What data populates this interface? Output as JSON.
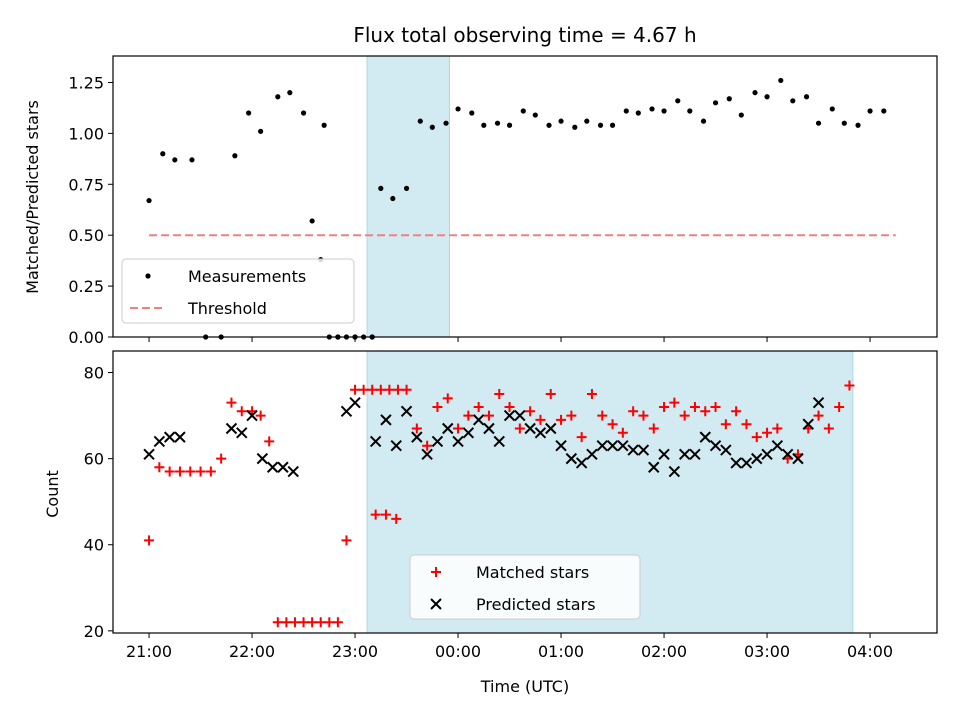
{
  "chart_data": [
    {
      "type": "scatter",
      "title": "Flux total observing time = 4.67 h",
      "xlabel": "",
      "ylabel": "Matched/Predicted stars",
      "x_range_hours": [
        20.65,
        28.65
      ],
      "ylim": [
        0,
        1.38
      ],
      "yticks": [
        0.0,
        0.25,
        0.5,
        0.75,
        1.0,
        1.25
      ],
      "ytick_labels": [
        "0.00",
        "0.25",
        "0.50",
        "0.75",
        "1.00",
        "1.25"
      ],
      "shaded_span": [
        "23:07",
        "23:55"
      ],
      "shade_color": "#add8e6",
      "legend": {
        "position": "lower-left",
        "entries": [
          "Measurements",
          "Threshold"
        ]
      },
      "threshold": {
        "name": "Threshold",
        "value": 0.5,
        "x_range": [
          "21:00",
          "04:15"
        ],
        "color": "#f08080"
      },
      "series": [
        {
          "name": "Measurements",
          "color": "#000000",
          "points": [
            [
              "21:00",
              0.67
            ],
            [
              "21:08",
              0.9
            ],
            [
              "21:15",
              0.87
            ],
            [
              "21:25",
              0.87
            ],
            [
              "21:33",
              0.0
            ],
            [
              "21:42",
              0.0
            ],
            [
              "21:50",
              0.89
            ],
            [
              "21:58",
              1.1
            ],
            [
              "22:05",
              1.01
            ],
            [
              "22:15",
              1.18
            ],
            [
              "22:22",
              1.2
            ],
            [
              "22:30",
              1.1
            ],
            [
              "22:40",
              0.38
            ],
            [
              "22:45",
              0.0
            ],
            [
              "22:50",
              0.0
            ],
            [
              "22:55",
              0.0
            ],
            [
              "23:00",
              0.0
            ],
            [
              "23:05",
              0.0
            ],
            [
              "23:10",
              0.0
            ],
            [
              "22:35",
              0.57
            ],
            [
              "22:42",
              1.04
            ],
            [
              "22:50",
              0.0
            ],
            [
              "23:00",
              0.0
            ],
            [
              "23:10",
              0.0
            ],
            [
              "23:15",
              0.73
            ],
            [
              "23:22",
              0.68
            ],
            [
              "23:30",
              0.73
            ],
            [
              "23:38",
              1.06
            ],
            [
              "23:45",
              1.03
            ],
            [
              "23:53",
              1.05
            ],
            [
              "00:00",
              1.12
            ],
            [
              "00:08",
              1.1
            ],
            [
              "00:15",
              1.04
            ],
            [
              "00:23",
              1.05
            ],
            [
              "00:30",
              1.04
            ],
            [
              "00:38",
              1.11
            ],
            [
              "00:45",
              1.09
            ],
            [
              "00:53",
              1.04
            ],
            [
              "01:00",
              1.06
            ],
            [
              "01:08",
              1.03
            ],
            [
              "01:15",
              1.06
            ],
            [
              "01:23",
              1.04
            ],
            [
              "01:30",
              1.04
            ],
            [
              "01:38",
              1.11
            ],
            [
              "01:45",
              1.1
            ],
            [
              "01:53",
              1.12
            ],
            [
              "02:00",
              1.11
            ],
            [
              "02:08",
              1.16
            ],
            [
              "02:15",
              1.11
            ],
            [
              "02:23",
              1.06
            ],
            [
              "02:30",
              1.15
            ],
            [
              "02:38",
              1.17
            ],
            [
              "02:45",
              1.09
            ],
            [
              "02:53",
              1.2
            ],
            [
              "03:00",
              1.18
            ],
            [
              "03:08",
              1.26
            ],
            [
              "03:15",
              1.16
            ],
            [
              "03:23",
              1.18
            ],
            [
              "03:30",
              1.05
            ],
            [
              "03:38",
              1.12
            ],
            [
              "03:45",
              1.05
            ],
            [
              "03:53",
              1.04
            ],
            [
              "04:00",
              1.11
            ],
            [
              "04:08",
              1.11
            ]
          ]
        }
      ]
    },
    {
      "type": "scatter",
      "title": "",
      "xlabel": "Time (UTC)",
      "ylabel": "Count",
      "x_range_hours": [
        20.65,
        28.65
      ],
      "ylim": [
        19.5,
        85
      ],
      "yticks": [
        20,
        40,
        60,
        80
      ],
      "ytick_labels": [
        "20",
        "40",
        "60",
        "80"
      ],
      "xticks": [
        "21:00",
        "22:00",
        "23:00",
        "00:00",
        "01:00",
        "02:00",
        "03:00",
        "04:00"
      ],
      "shaded_span": [
        "23:07",
        "03:50"
      ],
      "shade_color": "#add8e6",
      "legend": {
        "position": "lower-center",
        "entries": [
          "Matched stars",
          "Predicted stars"
        ]
      },
      "series": [
        {
          "name": "Matched stars",
          "marker": "plus",
          "color": "#ff0000",
          "points": [
            [
              "21:00",
              41
            ],
            [
              "21:06",
              58
            ],
            [
              "21:12",
              57
            ],
            [
              "21:18",
              57
            ],
            [
              "21:24",
              57
            ],
            [
              "21:30",
              57
            ],
            [
              "21:36",
              57
            ],
            [
              "21:42",
              60
            ],
            [
              "21:48",
              73
            ],
            [
              "21:54",
              71
            ],
            [
              "22:00",
              71
            ],
            [
              "22:05",
              70
            ],
            [
              "22:10",
              64
            ],
            [
              "22:15",
              22
            ],
            [
              "22:20",
              22
            ],
            [
              "22:25",
              22
            ],
            [
              "22:30",
              22
            ],
            [
              "22:35",
              22
            ],
            [
              "22:40",
              22
            ],
            [
              "22:45",
              22
            ],
            [
              "22:50",
              22
            ],
            [
              "22:55",
              41
            ],
            [
              "23:00",
              76
            ],
            [
              "23:05",
              76
            ],
            [
              "23:10",
              76
            ],
            [
              "23:15",
              76
            ],
            [
              "23:20",
              76
            ],
            [
              "23:25",
              76
            ],
            [
              "23:12",
              47
            ],
            [
              "23:18",
              47
            ],
            [
              "23:24",
              46
            ],
            [
              "23:30",
              76
            ],
            [
              "23:36",
              67
            ],
            [
              "23:42",
              63
            ],
            [
              "23:48",
              72
            ],
            [
              "23:54",
              74
            ],
            [
              "00:00",
              67
            ],
            [
              "00:06",
              70
            ],
            [
              "00:12",
              72
            ],
            [
              "00:18",
              70
            ],
            [
              "00:24",
              75
            ],
            [
              "00:30",
              72
            ],
            [
              "00:36",
              67
            ],
            [
              "00:42",
              71
            ],
            [
              "00:48",
              69
            ],
            [
              "00:54",
              75
            ],
            [
              "01:00",
              69
            ],
            [
              "01:06",
              70
            ],
            [
              "01:12",
              65
            ],
            [
              "01:18",
              75
            ],
            [
              "01:24",
              70
            ],
            [
              "01:30",
              68
            ],
            [
              "01:36",
              66
            ],
            [
              "01:42",
              71
            ],
            [
              "01:48",
              70
            ],
            [
              "01:54",
              67
            ],
            [
              "02:00",
              72
            ],
            [
              "02:06",
              73
            ],
            [
              "02:12",
              70
            ],
            [
              "02:18",
              72
            ],
            [
              "02:24",
              71
            ],
            [
              "02:30",
              72
            ],
            [
              "02:36",
              68
            ],
            [
              "02:42",
              71
            ],
            [
              "02:48",
              68
            ],
            [
              "02:54",
              65
            ],
            [
              "03:00",
              66
            ],
            [
              "03:06",
              67
            ],
            [
              "03:12",
              60
            ],
            [
              "03:18",
              61
            ],
            [
              "03:24",
              67
            ],
            [
              "03:30",
              70
            ],
            [
              "03:36",
              67
            ],
            [
              "03:42",
              72
            ],
            [
              "03:48",
              77
            ]
          ]
        },
        {
          "name": "Predicted stars",
          "marker": "x",
          "color": "#000000",
          "points": [
            [
              "21:00",
              61
            ],
            [
              "21:06",
              64
            ],
            [
              "21:12",
              65
            ],
            [
              "21:18",
              65
            ],
            [
              "21:48",
              67
            ],
            [
              "21:54",
              66
            ],
            [
              "22:00",
              70
            ],
            [
              "22:06",
              60
            ],
            [
              "22:12",
              58
            ],
            [
              "22:18",
              58
            ],
            [
              "22:24",
              57
            ],
            [
              "22:55",
              71
            ],
            [
              "23:00",
              73
            ],
            [
              "23:12",
              64
            ],
            [
              "23:18",
              69
            ],
            [
              "23:24",
              63
            ],
            [
              "23:30",
              71
            ],
            [
              "23:36",
              65
            ],
            [
              "23:42",
              61
            ],
            [
              "23:48",
              64
            ],
            [
              "23:54",
              67
            ],
            [
              "00:00",
              64
            ],
            [
              "00:06",
              66
            ],
            [
              "00:12",
              69
            ],
            [
              "00:18",
              67
            ],
            [
              "00:24",
              64
            ],
            [
              "00:30",
              70
            ],
            [
              "00:36",
              70
            ],
            [
              "00:42",
              67
            ],
            [
              "00:48",
              66
            ],
            [
              "00:54",
              67
            ],
            [
              "01:00",
              63
            ],
            [
              "01:06",
              60
            ],
            [
              "01:12",
              59
            ],
            [
              "01:18",
              61
            ],
            [
              "01:24",
              63
            ],
            [
              "01:30",
              63
            ],
            [
              "01:36",
              63
            ],
            [
              "01:42",
              62
            ],
            [
              "01:48",
              62
            ],
            [
              "01:54",
              58
            ],
            [
              "02:00",
              61
            ],
            [
              "02:06",
              57
            ],
            [
              "02:12",
              61
            ],
            [
              "02:18",
              61
            ],
            [
              "02:24",
              65
            ],
            [
              "02:30",
              63
            ],
            [
              "02:36",
              62
            ],
            [
              "02:42",
              59
            ],
            [
              "02:48",
              59
            ],
            [
              "02:54",
              60
            ],
            [
              "03:00",
              61
            ],
            [
              "03:06",
              63
            ],
            [
              "03:12",
              61
            ],
            [
              "03:18",
              60
            ],
            [
              "03:24",
              68
            ],
            [
              "03:30",
              73
            ]
          ]
        }
      ]
    }
  ]
}
